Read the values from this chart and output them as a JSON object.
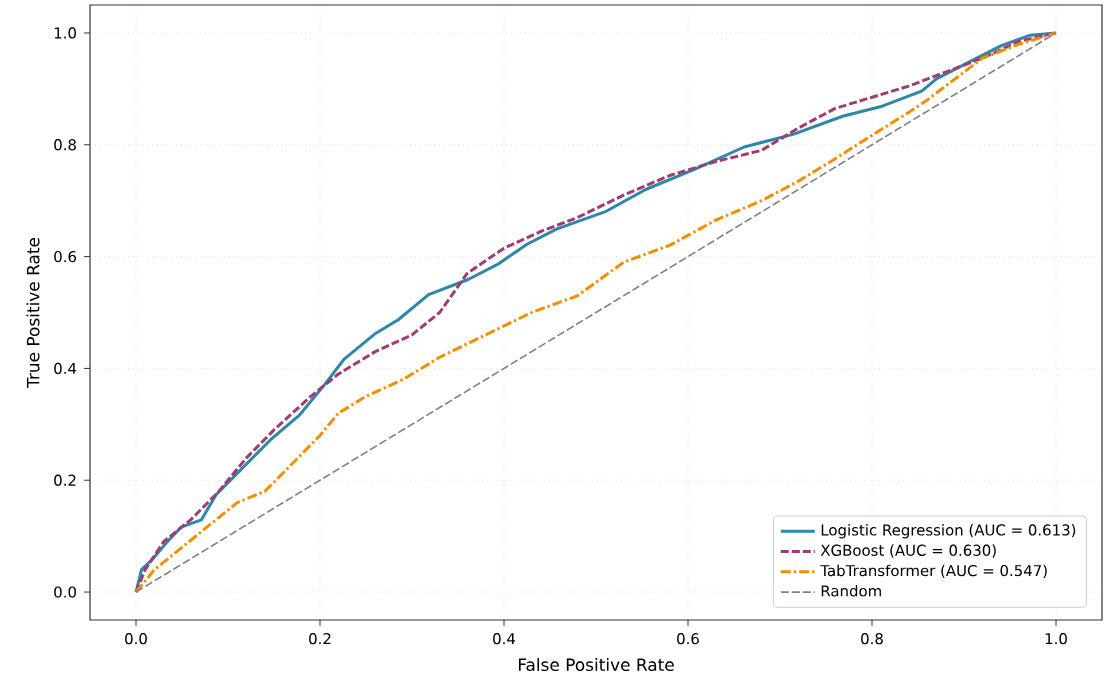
{
  "chart_data": {
    "type": "line",
    "xlabel": "False Positive Rate",
    "ylabel": "True Positive Rate",
    "xlim": [
      -0.05,
      1.05
    ],
    "ylim": [
      -0.05,
      1.05
    ],
    "xticks": [
      {
        "value": 0,
        "label": "0.0"
      },
      {
        "value": 0.2,
        "label": "0.2"
      },
      {
        "value": 0.4,
        "label": "0.4"
      },
      {
        "value": 0.6,
        "label": "0.6"
      },
      {
        "value": 0.8,
        "label": "0.8"
      },
      {
        "value": 1,
        "label": "1.0"
      }
    ],
    "yticks": [
      {
        "value": 0,
        "label": "0.0"
      },
      {
        "value": 0.2,
        "label": "0.2"
      },
      {
        "value": 0.4,
        "label": "0.4"
      },
      {
        "value": 0.6,
        "label": "0.6"
      },
      {
        "value": 0.8,
        "label": "0.8"
      },
      {
        "value": 1,
        "label": "1.0"
      }
    ],
    "grid": true,
    "legend": "bottom right",
    "series": [
      {
        "name": "Logistic Regression (AUC = 0.613)",
        "color": "#2e86ab",
        "line_style": "solid",
        "x": [
          0,
          0.006,
          0.017,
          0.033,
          0.049,
          0.071,
          0.087,
          0.114,
          0.146,
          0.178,
          0.205,
          0.226,
          0.259,
          0.285,
          0.318,
          0.361,
          0.393,
          0.425,
          0.457,
          0.511,
          0.554,
          0.607,
          0.661,
          0.715,
          0.768,
          0.811,
          0.854,
          0.87,
          0.908,
          0.94,
          0.972,
          1
        ],
        "values": [
          0,
          0.04,
          0.057,
          0.088,
          0.116,
          0.129,
          0.174,
          0.219,
          0.272,
          0.317,
          0.371,
          0.416,
          0.461,
          0.487,
          0.532,
          0.559,
          0.586,
          0.622,
          0.649,
          0.681,
          0.72,
          0.756,
          0.796,
          0.819,
          0.851,
          0.869,
          0.896,
          0.918,
          0.95,
          0.977,
          0.996,
          1
        ]
      },
      {
        "name": "XGBoost (AUC = 0.630)",
        "color": "#a23b72",
        "line_style": "dashed",
        "x": [
          0,
          0.01,
          0.03,
          0.06,
          0.09,
          0.12,
          0.15,
          0.19,
          0.22,
          0.26,
          0.3,
          0.33,
          0.36,
          0.4,
          0.44,
          0.48,
          0.53,
          0.58,
          0.63,
          0.68,
          0.72,
          0.76,
          0.8,
          0.84,
          0.88,
          0.92,
          0.96,
          1
        ],
        "values": [
          0,
          0.04,
          0.09,
          0.13,
          0.18,
          0.24,
          0.29,
          0.35,
          0.39,
          0.43,
          0.46,
          0.5,
          0.57,
          0.615,
          0.645,
          0.67,
          0.71,
          0.745,
          0.77,
          0.79,
          0.83,
          0.865,
          0.885,
          0.905,
          0.93,
          0.955,
          0.985,
          1
        ]
      },
      {
        "name": "TabTransformer (AUC = 0.547)",
        "color": "#f18f01",
        "line_style": "dashdot",
        "x": [
          0,
          0.02,
          0.05,
          0.08,
          0.11,
          0.14,
          0.17,
          0.2,
          0.22,
          0.25,
          0.29,
          0.33,
          0.38,
          0.43,
          0.48,
          0.53,
          0.58,
          0.63,
          0.68,
          0.72,
          0.76,
          0.8,
          0.84,
          0.86,
          0.88,
          0.92,
          0.96,
          1
        ],
        "values": [
          0,
          0.04,
          0.08,
          0.12,
          0.16,
          0.18,
          0.23,
          0.28,
          0.32,
          0.35,
          0.38,
          0.42,
          0.46,
          0.5,
          0.53,
          0.59,
          0.62,
          0.665,
          0.7,
          0.735,
          0.775,
          0.817,
          0.858,
          0.88,
          0.905,
          0.955,
          0.98,
          1
        ]
      },
      {
        "name": "Random",
        "color": "#808080",
        "line_style": "dashed",
        "x": [
          0,
          1
        ],
        "values": [
          0,
          1
        ]
      }
    ]
  }
}
